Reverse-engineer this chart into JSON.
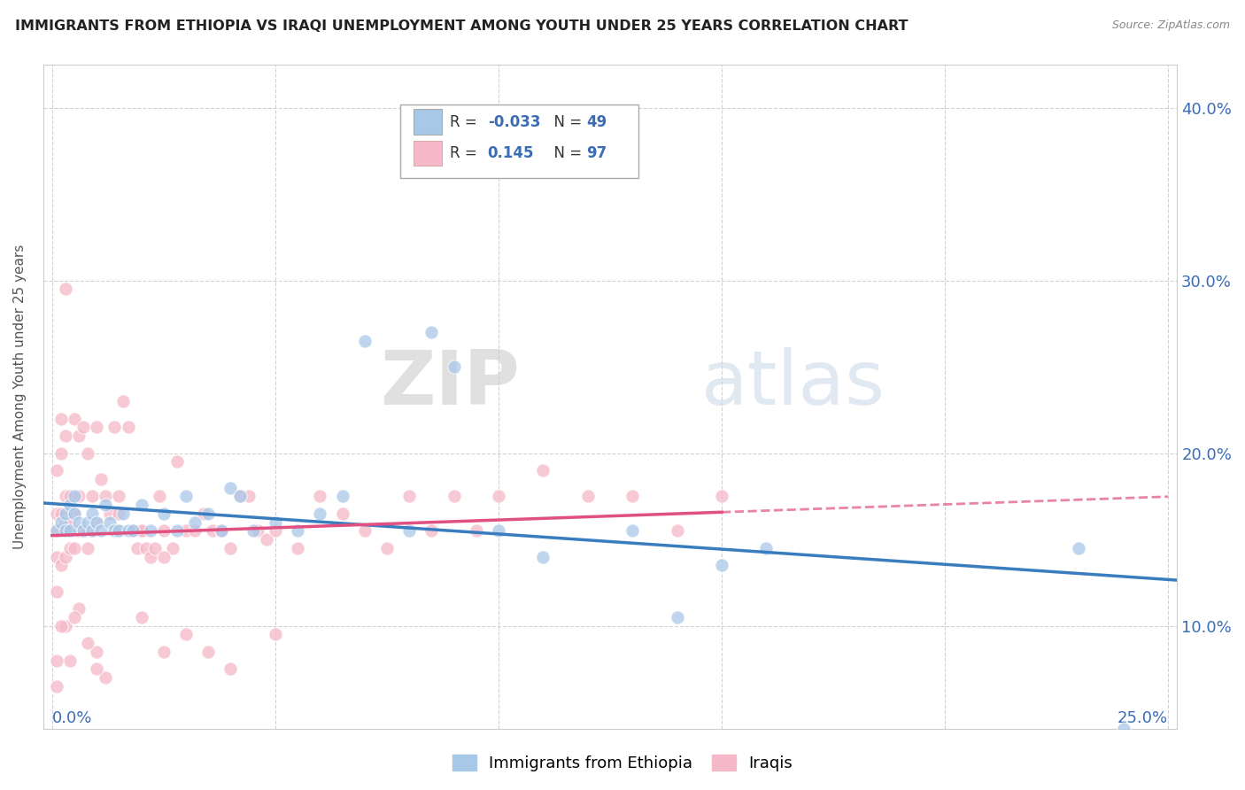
{
  "title": "IMMIGRANTS FROM ETHIOPIA VS IRAQI UNEMPLOYMENT AMONG YOUTH UNDER 25 YEARS CORRELATION CHART",
  "source": "Source: ZipAtlas.com",
  "ylabel": "Unemployment Among Youth under 25 years",
  "ylim": [
    0.04,
    0.425
  ],
  "xlim": [
    -0.002,
    0.252
  ],
  "yticks": [
    0.1,
    0.2,
    0.3,
    0.4
  ],
  "ytick_labels": [
    "10.0%",
    "20.0%",
    "30.0%",
    "40.0%"
  ],
  "xtick_labels_positions": [
    0.0,
    0.25
  ],
  "xtick_labels": [
    "0.0%",
    "25.0%"
  ],
  "color_blue": "#a8c8e8",
  "color_pink": "#f5b8c8",
  "color_blue_line": "#3a7dbf",
  "color_pink_line": "#e05080",
  "color_text_blue": "#3a6db5",
  "watermark_zip": "ZIP",
  "watermark_atlas": "atlas",
  "legend_r1_label": "R = ",
  "legend_r1_val": "-0.033",
  "legend_n1_label": "  N = ",
  "legend_n1_val": "49",
  "legend_r2_label": "R =  ",
  "legend_r2_val": "0.145",
  "legend_n2_label": "  N = ",
  "legend_n2_val": "97",
  "ethiopia_x": [
    0.001,
    0.002,
    0.003,
    0.003,
    0.004,
    0.004,
    0.005,
    0.005,
    0.006,
    0.007,
    0.008,
    0.009,
    0.009,
    0.01,
    0.011,
    0.012,
    0.013,
    0.014,
    0.015,
    0.016,
    0.017,
    0.018,
    0.02,
    0.022,
    0.025,
    0.028,
    0.03,
    0.032,
    0.035,
    0.038,
    0.04,
    0.042,
    0.045,
    0.05,
    0.055,
    0.06,
    0.065,
    0.07,
    0.08,
    0.085,
    0.09,
    0.1,
    0.11,
    0.13,
    0.14,
    0.15,
    0.16,
    0.23,
    0.24
  ],
  "ethiopia_y": [
    0.155,
    0.16,
    0.155,
    0.165,
    0.155,
    0.17,
    0.165,
    0.175,
    0.16,
    0.155,
    0.16,
    0.165,
    0.155,
    0.16,
    0.155,
    0.17,
    0.16,
    0.155,
    0.155,
    0.165,
    0.155,
    0.155,
    0.17,
    0.155,
    0.165,
    0.155,
    0.175,
    0.16,
    0.165,
    0.155,
    0.18,
    0.175,
    0.155,
    0.16,
    0.155,
    0.165,
    0.175,
    0.265,
    0.155,
    0.27,
    0.25,
    0.155,
    0.14,
    0.155,
    0.105,
    0.135,
    0.145,
    0.145,
    0.04
  ],
  "iraqi_x": [
    0.001,
    0.001,
    0.001,
    0.001,
    0.002,
    0.002,
    0.002,
    0.002,
    0.003,
    0.003,
    0.003,
    0.003,
    0.004,
    0.004,
    0.004,
    0.005,
    0.005,
    0.005,
    0.006,
    0.006,
    0.006,
    0.007,
    0.007,
    0.008,
    0.008,
    0.009,
    0.009,
    0.01,
    0.01,
    0.011,
    0.012,
    0.013,
    0.014,
    0.015,
    0.016,
    0.017,
    0.018,
    0.019,
    0.02,
    0.021,
    0.022,
    0.023,
    0.024,
    0.025,
    0.027,
    0.028,
    0.03,
    0.032,
    0.034,
    0.036,
    0.038,
    0.04,
    0.042,
    0.044,
    0.046,
    0.048,
    0.05,
    0.055,
    0.06,
    0.065,
    0.07,
    0.075,
    0.08,
    0.085,
    0.09,
    0.095,
    0.1,
    0.11,
    0.12,
    0.13,
    0.14,
    0.15,
    0.025,
    0.02,
    0.015,
    0.01,
    0.008,
    0.006,
    0.004,
    0.003,
    0.002,
    0.001,
    0.05,
    0.04,
    0.035,
    0.03,
    0.025,
    0.02,
    0.015,
    0.012,
    0.01,
    0.008,
    0.005,
    0.003,
    0.002,
    0.001,
    0.001
  ],
  "iraqi_y": [
    0.14,
    0.155,
    0.165,
    0.19,
    0.135,
    0.155,
    0.165,
    0.2,
    0.14,
    0.16,
    0.175,
    0.21,
    0.145,
    0.16,
    0.175,
    0.145,
    0.165,
    0.22,
    0.155,
    0.175,
    0.21,
    0.155,
    0.215,
    0.155,
    0.2,
    0.155,
    0.175,
    0.16,
    0.215,
    0.185,
    0.175,
    0.165,
    0.215,
    0.175,
    0.23,
    0.215,
    0.155,
    0.145,
    0.155,
    0.145,
    0.14,
    0.145,
    0.175,
    0.155,
    0.145,
    0.195,
    0.155,
    0.155,
    0.165,
    0.155,
    0.155,
    0.145,
    0.175,
    0.175,
    0.155,
    0.15,
    0.155,
    0.145,
    0.175,
    0.165,
    0.155,
    0.145,
    0.175,
    0.155,
    0.175,
    0.155,
    0.175,
    0.19,
    0.175,
    0.175,
    0.155,
    0.175,
    0.085,
    0.105,
    0.165,
    0.085,
    0.09,
    0.11,
    0.08,
    0.1,
    0.22,
    0.065,
    0.095,
    0.075,
    0.085,
    0.095,
    0.14,
    0.155,
    0.155,
    0.07,
    0.075,
    0.145,
    0.105,
    0.295,
    0.1,
    0.12,
    0.08
  ]
}
